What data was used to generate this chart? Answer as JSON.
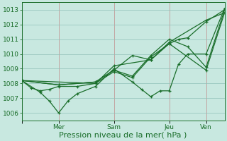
{
  "title": "",
  "xlabel": "Pression niveau de la mer( hPa )",
  "bg_color": "#c8e8e0",
  "grid_color": "#90c0b8",
  "line_color": "#1a6e2a",
  "vline_color": "#c08080",
  "ylim": [
    1005.5,
    1013.5
  ],
  "yticks": [
    1006,
    1007,
    1008,
    1009,
    1010,
    1011,
    1012,
    1013
  ],
  "xlim": [
    0,
    264
  ],
  "xtick_positions": [
    0,
    48,
    120,
    192,
    240
  ],
  "xtick_labels": [
    "",
    "Mer",
    "Sam",
    "Jeu",
    "Ven"
  ],
  "vlines": [
    48,
    120,
    192,
    240
  ],
  "lines": [
    [
      0,
      1008.2,
      12,
      1007.7,
      24,
      1007.5,
      36,
      1007.6,
      48,
      1007.8,
      72,
      1007.8,
      96,
      1008.0,
      120,
      1008.8,
      144,
      1008.4,
      168,
      1009.8,
      192,
      1010.7,
      204,
      1011.0,
      216,
      1011.1,
      240,
      1012.2,
      264,
      1013.0
    ],
    [
      0,
      1008.2,
      24,
      1007.4,
      36,
      1006.8,
      48,
      1006.0,
      60,
      1006.8,
      72,
      1007.3,
      96,
      1007.8,
      120,
      1009.0,
      144,
      1008.1,
      156,
      1007.6,
      168,
      1007.1,
      180,
      1007.5,
      192,
      1007.5,
      204,
      1009.3,
      216,
      1010.0,
      240,
      1010.0,
      264,
      1013.1
    ],
    [
      0,
      1008.2,
      48,
      1007.9,
      96,
      1008.1,
      120,
      1008.9,
      144,
      1009.9,
      168,
      1009.6,
      192,
      1010.7,
      240,
      1008.9,
      264,
      1012.8
    ],
    [
      0,
      1008.2,
      48,
      1007.9,
      96,
      1008.1,
      120,
      1008.9,
      144,
      1008.5,
      168,
      1009.9,
      192,
      1011.0,
      216,
      1010.5,
      240,
      1009.1,
      264,
      1013.0
    ],
    [
      0,
      1008.2,
      96,
      1008.0,
      120,
      1009.2,
      168,
      1009.6,
      192,
      1010.8,
      240,
      1012.3,
      264,
      1012.8
    ]
  ],
  "xlabel_fontsize": 8,
  "tick_fontsize": 6.5,
  "linewidth": 0.9,
  "markersize": 3.5
}
